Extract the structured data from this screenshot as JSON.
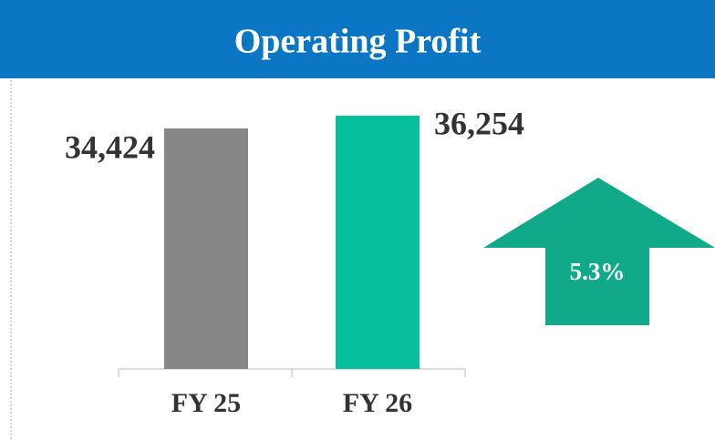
{
  "chart_data": {
    "type": "bar",
    "title": "Operating Profit",
    "categories": [
      "FY 25",
      "FY 26"
    ],
    "values": [
      34424,
      36254
    ],
    "value_labels": [
      "34,424",
      "36,254"
    ],
    "colors": [
      "#878787",
      "#07bf9b"
    ],
    "annotation": "5.3%",
    "annotation_color": "#10a98a",
    "header_color": "#0b76c4"
  }
}
